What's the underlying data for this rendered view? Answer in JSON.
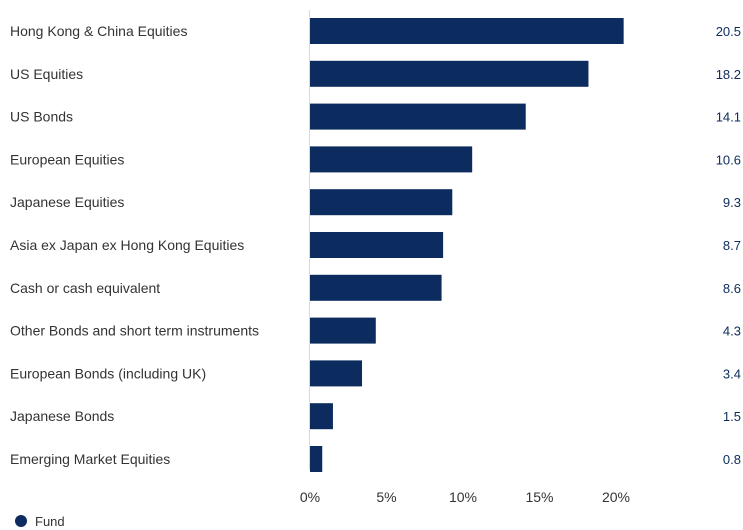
{
  "chart_data": {
    "type": "bar",
    "orientation": "horizontal",
    "categories": [
      "Hong Kong & China Equities",
      "US Equities",
      "US Bonds",
      "European Equities",
      "Japanese Equities",
      "Asia ex Japan ex Hong Kong Equities",
      "Cash or cash equivalent",
      "Other Bonds and short term instruments",
      "European Bonds (including UK)",
      "Japanese Bonds",
      "Emerging Market Equities"
    ],
    "series": [
      {
        "name": "Fund",
        "values": [
          20.5,
          18.2,
          14.1,
          10.6,
          9.3,
          8.7,
          8.6,
          4.3,
          3.4,
          1.5,
          0.8
        ],
        "value_labels": [
          "20.5",
          "18.2",
          "14.1",
          "10.6",
          "9.3",
          "8.7",
          "8.6",
          "4.3",
          "3.4",
          "1.5",
          "0.8"
        ]
      }
    ],
    "xlim": [
      0,
      25
    ],
    "x_ticks": [
      0,
      5,
      10,
      15,
      20
    ],
    "x_tick_labels": [
      "0%",
      "5%",
      "10%",
      "15%",
      "20%"
    ],
    "title": "",
    "xlabel": "",
    "ylabel": "",
    "grid": false,
    "legend_position": "bottom-left",
    "colors": {
      "bar": "#0c2b5e",
      "value_text": "#0c2b5e",
      "axis": "#d9d9d9"
    }
  }
}
